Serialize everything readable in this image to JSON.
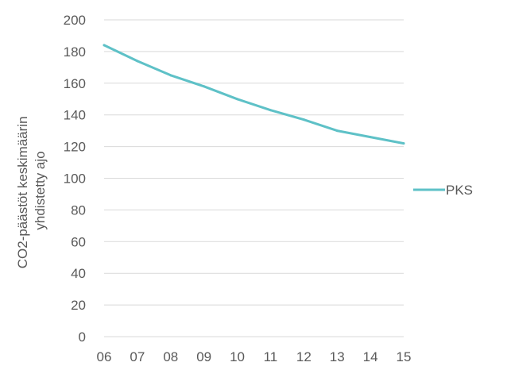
{
  "chart_data": {
    "type": "line",
    "title": "",
    "xlabel": "",
    "ylabel": [
      "CO2-päästöt keskimäärin",
      "yhdistetty ajo"
    ],
    "categories": [
      "06",
      "07",
      "08",
      "09",
      "10",
      "11",
      "12",
      "13",
      "14",
      "15"
    ],
    "series": [
      {
        "name": "PKS",
        "color": "#5ec1c7",
        "values": [
          184,
          174,
          165,
          158,
          150,
          143,
          137,
          130,
          126,
          122
        ]
      }
    ],
    "ylim": [
      0,
      200
    ],
    "yticks": [
      "0",
      "20",
      "40",
      "60",
      "80",
      "100",
      "120",
      "140",
      "160",
      "180",
      "200"
    ],
    "grid": true,
    "legend": "right"
  }
}
